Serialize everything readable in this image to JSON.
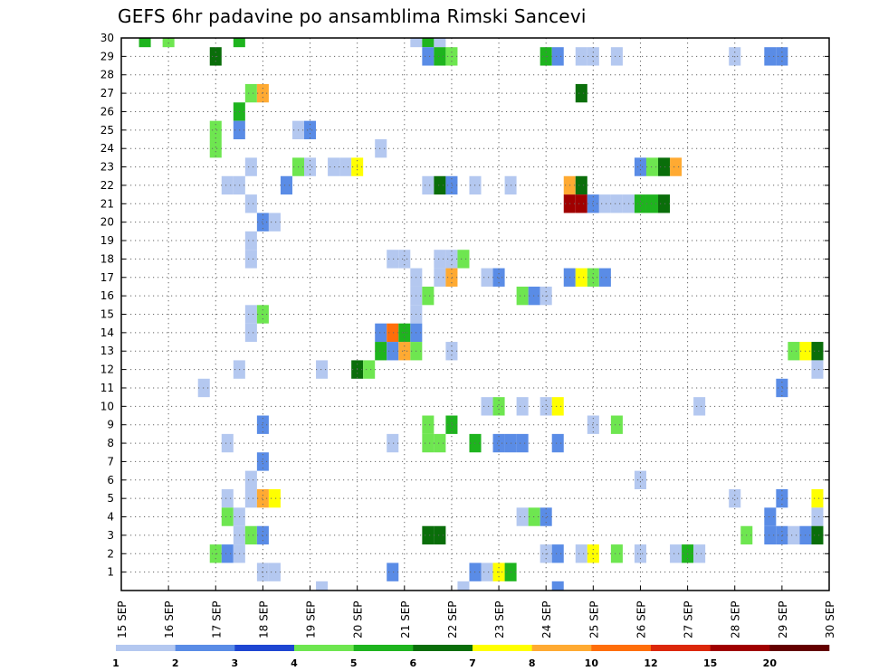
{
  "chart_data": {
    "type": "heatmap",
    "title": "GEFS 6hr padavine po ansamblima Rimski Sancevi",
    "x_start_day": 15,
    "steps_per_day": 4,
    "x_ticks": [
      "15 SEP",
      "16 SEP",
      "17 SEP",
      "18 SEP",
      "19 SEP",
      "20 SEP",
      "21 SEP",
      "22 SEP",
      "23 SEP",
      "24 SEP",
      "25 SEP",
      "26 SEP",
      "27 SEP",
      "28 SEP",
      "29 SEP",
      "30 SEP"
    ],
    "y_ticks": [
      "1",
      "2",
      "3",
      "4",
      "5",
      "6",
      "7",
      "8",
      "9",
      "10",
      "11",
      "12",
      "13",
      "14",
      "15",
      "16",
      "17",
      "18",
      "19",
      "20",
      "21",
      "22",
      "23",
      "24",
      "25",
      "26",
      "27",
      "28",
      "29",
      "30"
    ],
    "xlim_days": [
      15,
      30
    ],
    "ylim": [
      0,
      30
    ],
    "grid": true,
    "legend": {
      "placement": "bottom",
      "labels": [
        "1",
        "2",
        "3",
        "4",
        "5",
        "6",
        "7",
        "8",
        "10",
        "12",
        "15",
        "20"
      ],
      "colors": [
        "#b4c8f0",
        "#5a8ce6",
        "#1e46d2",
        "#6ee650",
        "#1eb41e",
        "#0a6e0a",
        "#ffff00",
        "#ffaa32",
        "#ff6e0a",
        "#dc280a",
        "#a00000",
        "#640000"
      ]
    },
    "cells": [
      [
        30,
        15.5,
        5
      ],
      [
        30,
        16.0,
        4
      ],
      [
        30,
        17.5,
        5
      ],
      [
        30,
        21.25,
        1
      ],
      [
        30,
        21.5,
        5
      ],
      [
        30,
        21.75,
        1
      ],
      [
        29,
        17.0,
        6
      ],
      [
        29,
        21.5,
        2
      ],
      [
        29,
        21.75,
        5
      ],
      [
        29,
        22.0,
        4
      ],
      [
        29,
        24.0,
        5
      ],
      [
        29,
        24.25,
        2
      ],
      [
        29,
        24.75,
        1
      ],
      [
        29,
        25.0,
        1
      ],
      [
        29,
        25.5,
        1
      ],
      [
        29,
        28.0,
        1
      ],
      [
        29,
        28.75,
        2
      ],
      [
        29,
        29.0,
        2
      ],
      [
        27,
        17.75,
        4
      ],
      [
        27,
        18.0,
        8
      ],
      [
        27,
        24.75,
        6
      ],
      [
        26,
        17.5,
        5
      ],
      [
        25,
        17.0,
        4
      ],
      [
        25,
        17.5,
        2
      ],
      [
        25,
        18.75,
        1
      ],
      [
        25,
        19.0,
        2
      ],
      [
        24,
        17.0,
        4
      ],
      [
        24,
        20.5,
        1
      ],
      [
        23,
        17.75,
        1
      ],
      [
        23,
        18.75,
        4
      ],
      [
        23,
        19.0,
        1
      ],
      [
        23,
        19.5,
        1
      ],
      [
        23,
        19.75,
        1
      ],
      [
        23,
        20.0,
        7
      ],
      [
        23,
        26.0,
        2
      ],
      [
        23,
        26.25,
        4
      ],
      [
        23,
        26.5,
        6
      ],
      [
        23,
        26.75,
        8
      ],
      [
        22,
        17.25,
        1
      ],
      [
        22,
        17.5,
        1
      ],
      [
        22,
        18.5,
        2
      ],
      [
        22,
        21.5,
        1
      ],
      [
        22,
        21.75,
        6
      ],
      [
        22,
        22.0,
        2
      ],
      [
        22,
        22.5,
        1
      ],
      [
        22,
        23.25,
        1
      ],
      [
        22,
        24.5,
        8
      ],
      [
        22,
        24.75,
        6
      ],
      [
        21,
        17.75,
        1
      ],
      [
        21,
        24.5,
        11
      ],
      [
        21,
        24.75,
        11
      ],
      [
        21,
        25.0,
        2
      ],
      [
        21,
        25.25,
        1
      ],
      [
        21,
        25.5,
        1
      ],
      [
        21,
        25.75,
        1
      ],
      [
        21,
        26.0,
        5
      ],
      [
        21,
        26.25,
        5
      ],
      [
        21,
        26.5,
        6
      ],
      [
        20,
        18.0,
        2
      ],
      [
        20,
        18.25,
        1
      ],
      [
        19,
        17.75,
        1
      ],
      [
        18,
        17.75,
        1
      ],
      [
        18,
        20.75,
        1
      ],
      [
        18,
        21.0,
        1
      ],
      [
        18,
        21.75,
        1
      ],
      [
        18,
        22.0,
        1
      ],
      [
        18,
        22.25,
        4
      ],
      [
        17,
        21.25,
        1
      ],
      [
        17,
        21.75,
        1
      ],
      [
        17,
        22.0,
        8
      ],
      [
        17,
        22.75,
        1
      ],
      [
        17,
        23.0,
        2
      ],
      [
        17,
        24.5,
        2
      ],
      [
        17,
        24.75,
        7
      ],
      [
        17,
        25.0,
        4
      ],
      [
        17,
        25.25,
        2
      ],
      [
        16,
        21.25,
        1
      ],
      [
        16,
        21.5,
        4
      ],
      [
        16,
        23.5,
        4
      ],
      [
        16,
        23.75,
        2
      ],
      [
        16,
        24.0,
        1
      ],
      [
        15,
        17.75,
        1
      ],
      [
        15,
        18.0,
        4
      ],
      [
        15,
        21.25,
        1
      ],
      [
        14,
        17.75,
        1
      ],
      [
        14,
        20.5,
        2
      ],
      [
        14,
        20.75,
        9
      ],
      [
        14,
        21.0,
        5
      ],
      [
        14,
        21.25,
        2
      ],
      [
        13,
        20.5,
        5
      ],
      [
        13,
        20.75,
        2
      ],
      [
        13,
        21.0,
        8
      ],
      [
        13,
        21.25,
        4
      ],
      [
        13,
        22.0,
        1
      ],
      [
        13,
        29.25,
        4
      ],
      [
        13,
        29.5,
        7
      ],
      [
        13,
        29.75,
        6
      ],
      [
        12,
        17.5,
        1
      ],
      [
        12,
        19.25,
        1
      ],
      [
        12,
        20.0,
        6
      ],
      [
        12,
        20.25,
        4
      ],
      [
        12,
        29.75,
        1
      ],
      [
        11,
        16.75,
        1
      ],
      [
        11,
        29.0,
        2
      ],
      [
        10,
        22.75,
        1
      ],
      [
        10,
        23.0,
        4
      ],
      [
        10,
        23.5,
        1
      ],
      [
        10,
        24.0,
        1
      ],
      [
        10,
        24.25,
        7
      ],
      [
        10,
        27.25,
        1
      ],
      [
        9,
        18.0,
        2
      ],
      [
        9,
        21.5,
        4
      ],
      [
        9,
        22.0,
        5
      ],
      [
        9,
        25.0,
        1
      ],
      [
        9,
        25.5,
        4
      ],
      [
        8,
        17.25,
        1
      ],
      [
        8,
        20.75,
        1
      ],
      [
        8,
        21.5,
        4
      ],
      [
        8,
        21.75,
        4
      ],
      [
        8,
        22.5,
        5
      ],
      [
        8,
        23.0,
        2
      ],
      [
        8,
        23.25,
        2
      ],
      [
        8,
        23.5,
        2
      ],
      [
        8,
        24.25,
        2
      ],
      [
        7,
        18.0,
        2
      ],
      [
        6,
        17.75,
        1
      ],
      [
        6,
        26.0,
        1
      ],
      [
        5,
        17.25,
        1
      ],
      [
        5,
        17.75,
        1
      ],
      [
        5,
        18.0,
        8
      ],
      [
        5,
        18.25,
        7
      ],
      [
        5,
        28.0,
        1
      ],
      [
        5,
        29.0,
        2
      ],
      [
        5,
        29.75,
        7
      ],
      [
        4,
        17.25,
        4
      ],
      [
        4,
        17.5,
        1
      ],
      [
        4,
        23.5,
        1
      ],
      [
        4,
        23.75,
        4
      ],
      [
        4,
        24.0,
        2
      ],
      [
        4,
        28.75,
        2
      ],
      [
        4,
        29.75,
        1
      ],
      [
        3,
        17.5,
        1
      ],
      [
        3,
        17.75,
        4
      ],
      [
        3,
        18.0,
        2
      ],
      [
        3,
        21.5,
        6
      ],
      [
        3,
        21.75,
        6
      ],
      [
        3,
        28.25,
        4
      ],
      [
        3,
        28.75,
        2
      ],
      [
        3,
        29.0,
        2
      ],
      [
        3,
        29.25,
        1
      ],
      [
        3,
        29.5,
        2
      ],
      [
        3,
        29.75,
        6
      ],
      [
        2,
        17.0,
        4
      ],
      [
        2,
        17.25,
        2
      ],
      [
        2,
        17.5,
        1
      ],
      [
        2,
        24.0,
        1
      ],
      [
        2,
        24.25,
        2
      ],
      [
        2,
        24.75,
        1
      ],
      [
        2,
        25.0,
        7
      ],
      [
        2,
        25.5,
        4
      ],
      [
        2,
        26.0,
        1
      ],
      [
        2,
        26.75,
        1
      ],
      [
        2,
        27.0,
        5
      ],
      [
        2,
        27.25,
        1
      ],
      [
        1,
        18.0,
        1
      ],
      [
        1,
        18.25,
        1
      ],
      [
        1,
        20.75,
        2
      ],
      [
        1,
        22.5,
        2
      ],
      [
        1,
        22.75,
        1
      ],
      [
        1,
        23.0,
        7
      ],
      [
        1,
        23.25,
        5
      ],
      [
        0,
        19.25,
        1
      ],
      [
        0,
        22.25,
        1
      ],
      [
        0,
        24.25,
        2
      ]
    ]
  }
}
